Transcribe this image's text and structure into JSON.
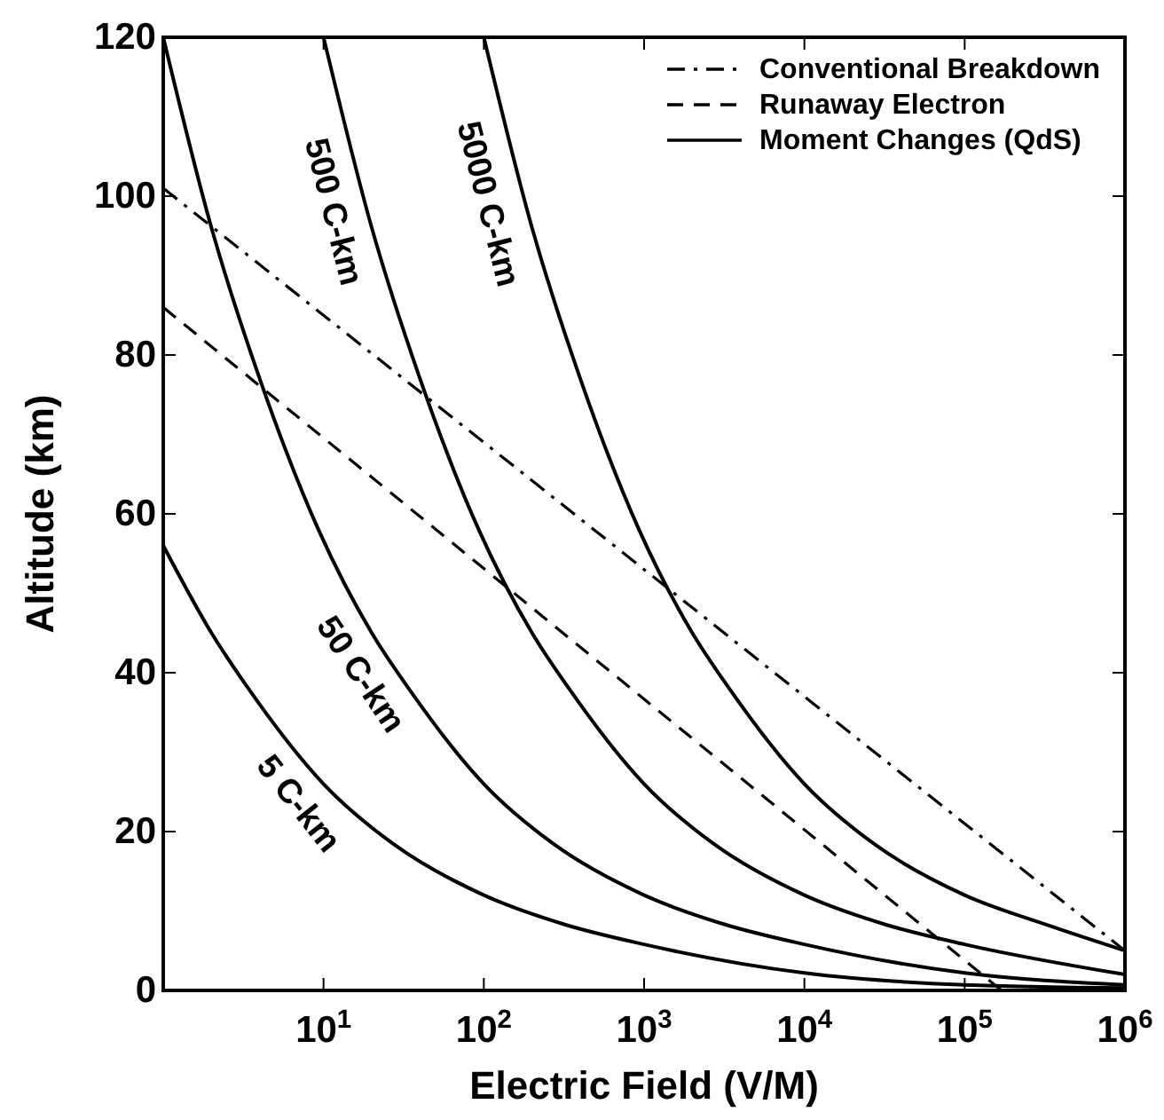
{
  "chart_data": {
    "type": "line",
    "xlabel": "Electric Field (V/M)",
    "ylabel": "Altitude (km)",
    "log": "x",
    "xlim": [
      1,
      1000000
    ],
    "ylim": [
      0,
      120
    ],
    "xticks": [
      {
        "value": 10,
        "label": "10$^{1}$"
      },
      {
        "value": 100,
        "label": "10$^{2}$"
      },
      {
        "value": 1000,
        "label": "10$^{3}$"
      },
      {
        "value": 10000,
        "label": "10$^{4}$"
      },
      {
        "value": 100000,
        "label": "10$^{5}$"
      },
      {
        "value": 1000000,
        "label": "10$^{6}$"
      }
    ],
    "yticks": [
      0,
      20,
      40,
      60,
      80,
      100,
      120
    ],
    "grid": false,
    "legend": "top right",
    "series": [
      {
        "name": "Conventional Breakdown",
        "color": "#000000",
        "line_style": "dashdot",
        "x": [
          1,
          1000000
        ],
        "values": [
          101,
          5
        ]
      },
      {
        "name": "Runaway Electron",
        "color": "#000000",
        "line_style": "dashed",
        "x": [
          1,
          170000
        ],
        "values": [
          86,
          0
        ]
      },
      {
        "name": "Moment Changes (QdS)",
        "color": "#000000",
        "line_style": "solid",
        "x": [
          1,
          2,
          3.4,
          10,
          27,
          100,
          320,
          1000,
          10000,
          100000,
          1000000
        ],
        "values": [
          56,
          45,
          38,
          26,
          18.5,
          12,
          8.3,
          5.8,
          2.2,
          0.7,
          0.3
        ]
      },
      {
        "color": "#000000",
        "line_style": "solid",
        "x": [
          1,
          2,
          4,
          9.3,
          20,
          34,
          100,
          270,
          1000,
          3200,
          10000,
          100000,
          1000000
        ],
        "values": [
          120,
          96,
          77,
          58,
          45,
          38,
          26,
          18.5,
          12,
          8.3,
          5.8,
          2.2,
          0.7
        ]
      },
      {
        "color": "#000000",
        "line_style": "solid",
        "x": [
          10,
          20,
          40,
          93,
          200,
          340,
          1000,
          2700,
          10000,
          32000,
          100000,
          1000000
        ],
        "values": [
          120,
          96,
          77,
          58,
          45,
          38,
          26,
          18.5,
          12,
          8.3,
          5.8,
          2
        ]
      },
      {
        "color": "#000000",
        "line_style": "solid",
        "x": [
          100,
          200,
          400,
          930,
          2000,
          3400,
          10000,
          27000,
          100000,
          320000,
          1000000
        ],
        "values": [
          120,
          96,
          77,
          58,
          45,
          38,
          26,
          18.5,
          12,
          8.3,
          5
        ]
      }
    ],
    "annotations": [
      {
        "text": "5 C-km",
        "x": 10,
        "y": 26
      },
      {
        "text": "50 C-km",
        "x": 25,
        "y": 42
      },
      {
        "text": "500 C-km",
        "x": 18,
        "y": 99
      },
      {
        "text": "5000 C-km",
        "x": 166,
        "y": 100
      }
    ]
  }
}
